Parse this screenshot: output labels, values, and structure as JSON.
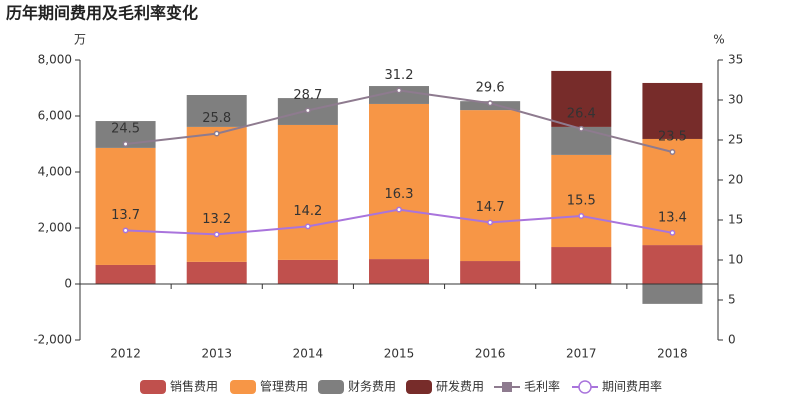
{
  "chart_data": {
    "type": "bar",
    "title": "历年期间费用及毛利率变化",
    "y_label": "万",
    "y2_label": "%",
    "categories": [
      "2012",
      "2013",
      "2014",
      "2015",
      "2016",
      "2017",
      "2018"
    ],
    "series": [
      {
        "name": "销售费用",
        "color": "#c0504d",
        "values": [
          680,
          790,
          860,
          890,
          820,
          1320,
          1390
        ]
      },
      {
        "name": "管理费用",
        "color": "#f79646",
        "values": [
          4180,
          4820,
          4820,
          5540,
          5390,
          3290,
          3790
        ]
      },
      {
        "name": "财务费用",
        "color": "#7f7f7f",
        "values": [
          960,
          1140,
          960,
          640,
          320,
          1000,
          -710
        ]
      },
      {
        "name": "研发费用",
        "color": "#772c2a",
        "values": [
          0,
          0,
          0,
          0,
          0,
          2000,
          2000
        ]
      },
      {
        "name": "毛利率",
        "type": "line",
        "axis": "y2",
        "color": "#8e7b8f",
        "values": [
          24.5,
          25.8,
          28.7,
          31.2,
          29.6,
          26.4,
          23.5
        ]
      },
      {
        "name": "期间费用率",
        "type": "line",
        "axis": "y2",
        "color": "#a974dc",
        "values": [
          13.7,
          13.2,
          14.2,
          16.3,
          14.7,
          15.5,
          13.4
        ]
      }
    ],
    "ylim": [
      -2000,
      8000
    ],
    "yticks": [
      {
        "value": -2000,
        "label": "-2,000"
      },
      0,
      {
        "value": 2000,
        "label": "2,000"
      },
      {
        "value": 4000,
        "label": "4,000"
      },
      {
        "value": 6000,
        "label": "6,000"
      },
      {
        "value": 8000,
        "label": "8,000"
      }
    ],
    "y2lim": [
      0,
      35
    ],
    "y2ticks": [
      0,
      5,
      10,
      15,
      20,
      25,
      30,
      35
    ],
    "legend": "bottom"
  }
}
